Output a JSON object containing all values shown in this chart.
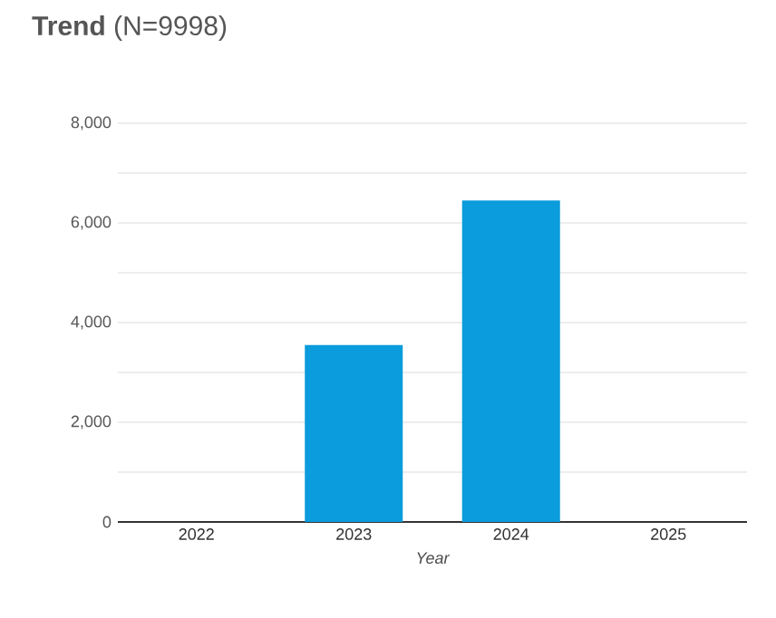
{
  "chart_data": {
    "type": "bar",
    "title": "**Trend** (N=9998)",
    "xlabel": "Year",
    "categories": [
      "2022",
      "2023",
      "2024",
      "2025"
    ],
    "values": [
      0,
      3550,
      6450,
      0
    ],
    "color": "#0a9cdc",
    "ylim": [
      0,
      8000
    ],
    "yticks": [
      0,
      {
        "value": 1000,
        "label": null
      },
      {
        "value": 2000,
        "label": "2,000"
      },
      {
        "value": 3000,
        "label": null
      },
      {
        "value": 4000,
        "label": "4,000"
      },
      {
        "value": 5000,
        "label": null
      },
      {
        "value": 6000,
        "label": "6,000"
      },
      {
        "value": 7000,
        "label": null
      },
      {
        "value": 8000,
        "label": "8,000"
      }
    ],
    "grid": "y"
  }
}
